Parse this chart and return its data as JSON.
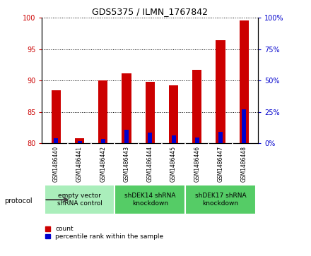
{
  "title": "GDS5375 / ILMN_1767842",
  "samples": [
    "GSM1486440",
    "GSM1486441",
    "GSM1486442",
    "GSM1486443",
    "GSM1486444",
    "GSM1486445",
    "GSM1486446",
    "GSM1486447",
    "GSM1486448"
  ],
  "count_values": [
    88.5,
    80.8,
    90.0,
    91.2,
    89.8,
    89.2,
    91.7,
    96.5,
    99.6
  ],
  "percentile_values": [
    4.0,
    2.0,
    3.5,
    11.0,
    8.5,
    6.5,
    4.5,
    9.0,
    27.0
  ],
  "ylim_left": [
    80,
    100
  ],
  "ylim_right": [
    0,
    100
  ],
  "yticks_left": [
    80,
    85,
    90,
    95,
    100
  ],
  "yticks_right": [
    0,
    25,
    50,
    75,
    100
  ],
  "bar_bottom": 80,
  "red_color": "#cc0000",
  "blue_color": "#0000cc",
  "groups": [
    {
      "label": "empty vector\nshRNA control",
      "start": 0,
      "end": 3,
      "color": "#aaeebb"
    },
    {
      "label": "shDEK14 shRNA\nknockdown",
      "start": 3,
      "end": 6,
      "color": "#55cc66"
    },
    {
      "label": "shDEK17 shRNA\nknockdown",
      "start": 6,
      "end": 9,
      "color": "#55cc66"
    }
  ],
  "legend_count_label": "count",
  "legend_pct_label": "percentile rank within the sample",
  "protocol_label": "protocol",
  "bar_width": 0.4,
  "bg_color": "#ffffff",
  "plot_bg_color": "#ffffff",
  "sample_bg_color": "#d0d0d0",
  "title_fontsize": 9,
  "tick_fontsize": 7,
  "sample_fontsize": 5.5,
  "group_fontsize": 6.5,
  "legend_fontsize": 6.5
}
